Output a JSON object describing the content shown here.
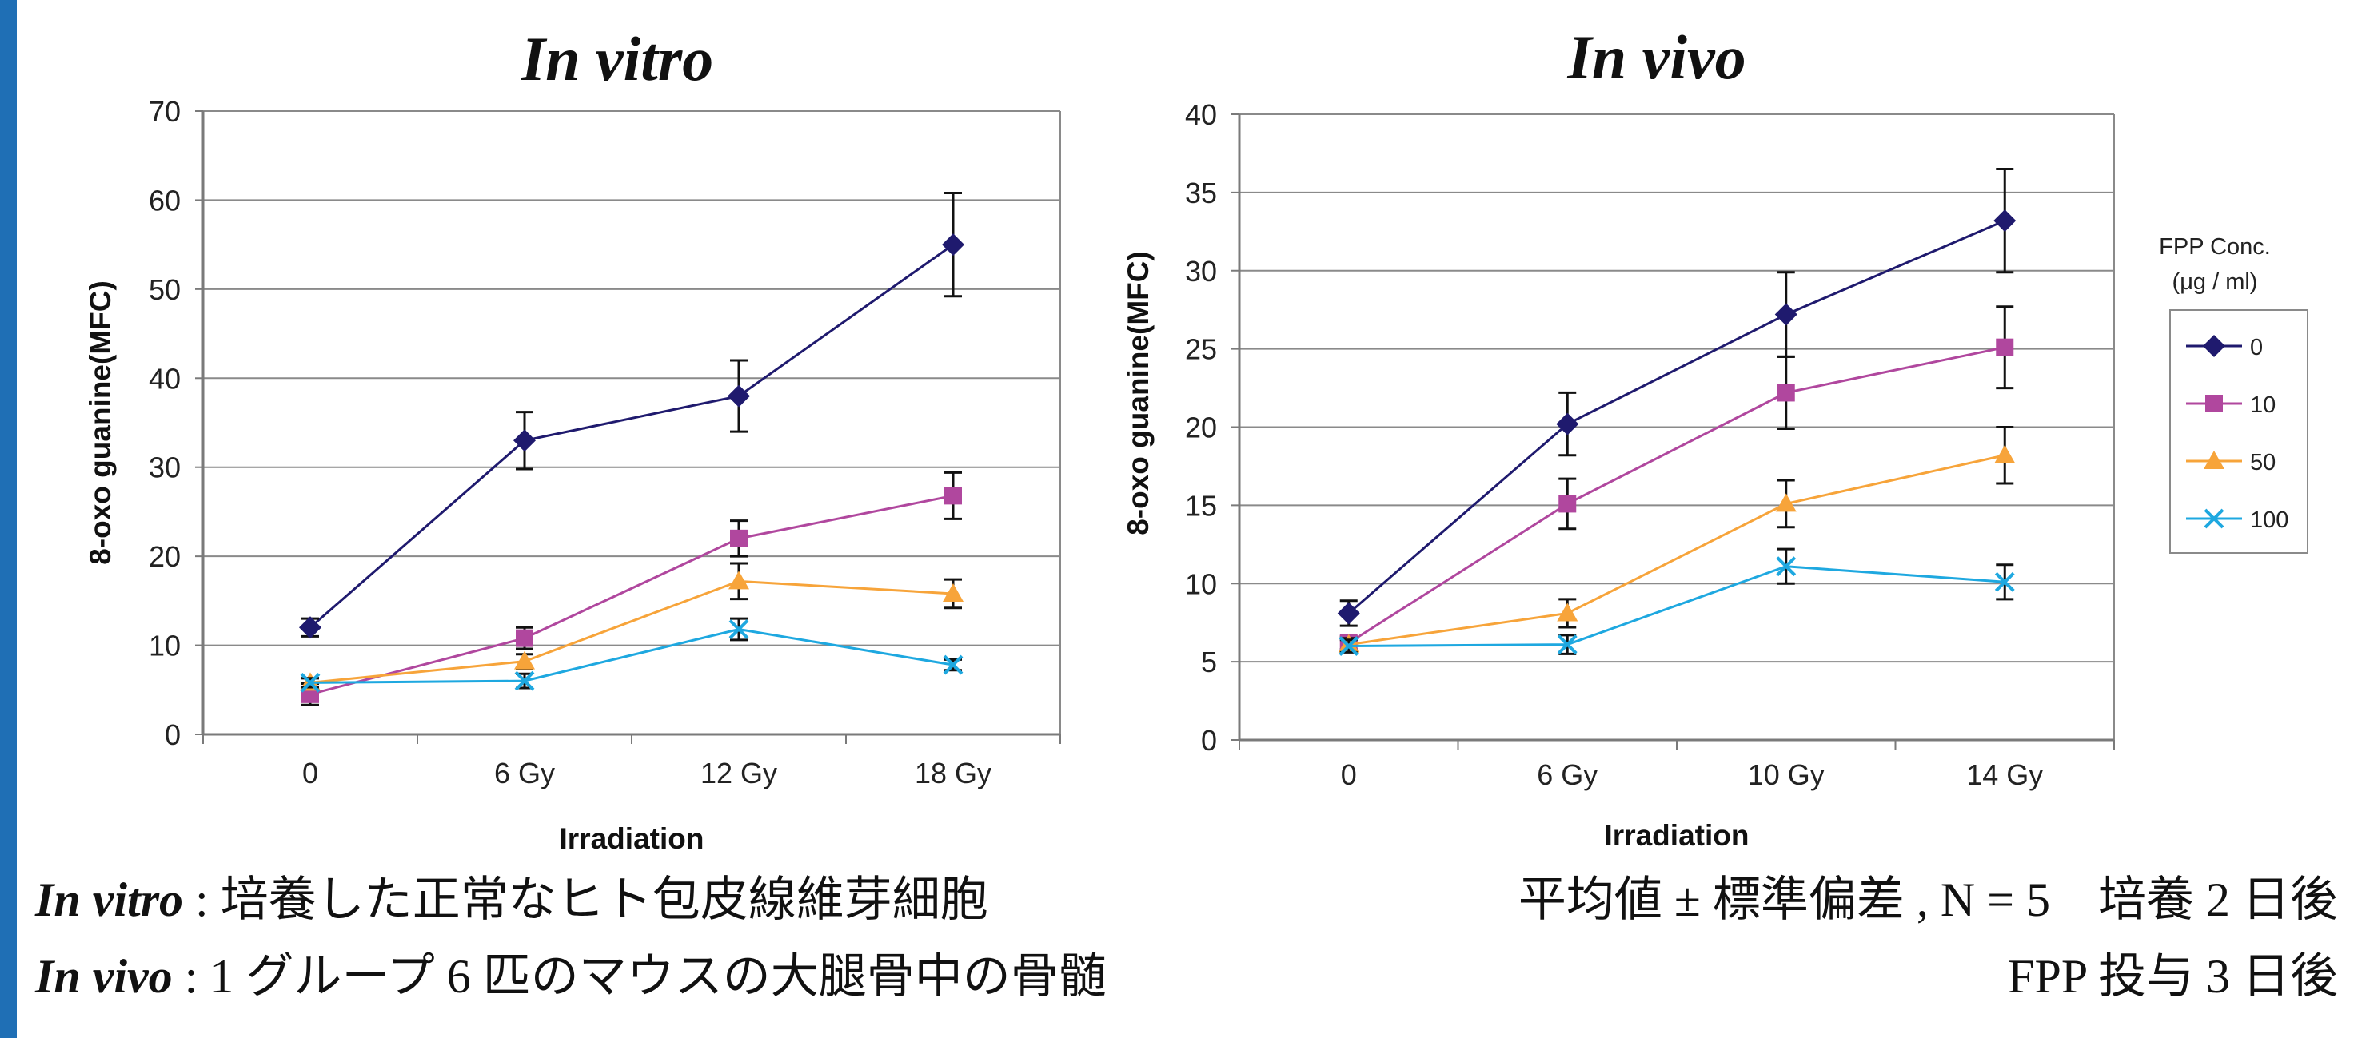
{
  "chart_data": [
    {
      "type": "line",
      "title": "In vitro",
      "xlabel": "Irradiation",
      "ylabel": "8-oxo guanine(MFC)",
      "categories": [
        "0",
        "6 Gy",
        "12 Gy",
        "18 Gy"
      ],
      "ylim": [
        0,
        70
      ],
      "yticks": [
        0,
        10,
        20,
        30,
        40,
        50,
        60,
        70
      ],
      "grid": true,
      "series": [
        {
          "name": "0",
          "values": [
            12,
            33,
            38,
            55
          ],
          "errors": [
            1,
            3.2,
            4,
            5.8
          ],
          "color": "#1f1a6e",
          "marker": "diamond"
        },
        {
          "name": "10",
          "values": [
            4.5,
            10.8,
            22,
            26.8
          ],
          "errors": [
            1.2,
            1.2,
            2,
            2.6
          ],
          "color": "#b0479e",
          "marker": "square"
        },
        {
          "name": "50",
          "values": [
            5.8,
            8.2,
            17.2,
            15.8
          ],
          "errors": [
            0.5,
            0.8,
            2,
            1.6
          ],
          "color": "#f7a43a",
          "marker": "triangle"
        },
        {
          "name": "100",
          "values": [
            5.8,
            6,
            11.8,
            7.8
          ],
          "errors": [
            0.5,
            0.8,
            1.2,
            0.6
          ],
          "color": "#1ea8e0",
          "marker": "x"
        }
      ]
    },
    {
      "type": "line",
      "title": "In vivo",
      "xlabel": "Irradiation",
      "ylabel": "8-oxo guanine(MFC)",
      "categories": [
        "0",
        "6 Gy",
        "10 Gy",
        "14 Gy"
      ],
      "ylim": [
        0,
        40
      ],
      "yticks": [
        0,
        5,
        10,
        15,
        20,
        25,
        30,
        35,
        40
      ],
      "grid": true,
      "legend": {
        "title_line1": "FPP Conc.",
        "title_line2": "(μg / ml)",
        "placement": "right"
      },
      "series": [
        {
          "name": "0",
          "values": [
            8.1,
            20.2,
            27.2,
            33.2
          ],
          "errors": [
            0.8,
            2,
            2.7,
            3.3
          ],
          "color": "#1f1a6e",
          "marker": "diamond"
        },
        {
          "name": "10",
          "values": [
            6.2,
            15.1,
            22.2,
            25.1
          ],
          "errors": [
            0.4,
            1.6,
            2.3,
            2.6
          ],
          "color": "#b0479e",
          "marker": "square"
        },
        {
          "name": "50",
          "values": [
            6.1,
            8.1,
            15.1,
            18.2
          ],
          "errors": [
            0.4,
            0.9,
            1.5,
            1.8
          ],
          "color": "#f7a43a",
          "marker": "triangle"
        },
        {
          "name": "100",
          "values": [
            6,
            6.1,
            11.1,
            10.1
          ],
          "errors": [
            0.4,
            0.6,
            1.1,
            1.1
          ],
          "color": "#1ea8e0",
          "marker": "x"
        }
      ]
    }
  ],
  "notes": {
    "row1": {
      "label_em": "In vitro",
      "label_rest": " : 培養した正常なヒト包皮線維芽細胞",
      "stats": "平均値 ± 標準偏差 , N = 5",
      "days": "培養 2 日後"
    },
    "row2": {
      "label_em": "In vivo",
      "label_rest": " : 1 グループ 6 匹のマウスの大腿骨中の骨髄",
      "days": "FPP 投与 3 日後"
    }
  }
}
